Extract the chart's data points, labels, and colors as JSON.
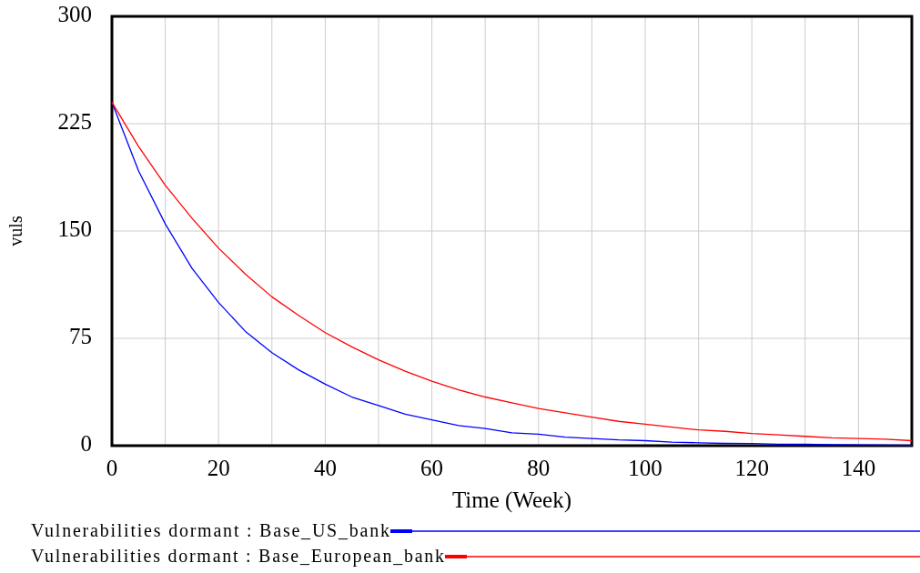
{
  "chart_data": {
    "type": "line",
    "xlabel": "Time (Week)",
    "ylabel": "vuls",
    "x": [
      0,
      5,
      10,
      15,
      20,
      25,
      30,
      35,
      40,
      45,
      50,
      55,
      60,
      65,
      70,
      75,
      80,
      85,
      90,
      95,
      100,
      105,
      110,
      115,
      120,
      125,
      130,
      135,
      140,
      145,
      150
    ],
    "series": [
      {
        "name": "Vulnerabilities dormant : Base_US_bank",
        "color": "#0000ff",
        "values": [
          240,
          192,
          155,
          124,
          100,
          80,
          65,
          53,
          43,
          34,
          28,
          22,
          18,
          14,
          12,
          9,
          8,
          6,
          5,
          4,
          3.5,
          2.5,
          2,
          1.6,
          1.5,
          1,
          1,
          0.7,
          0.5,
          0.4,
          0.3
        ]
      },
      {
        "name": "Vulnerabilities dormant : Base_European_bank",
        "color": "#ff0000",
        "values": [
          240,
          209,
          182,
          159,
          138,
          120,
          104,
          91,
          79,
          69,
          60,
          52,
          45,
          39,
          34,
          30,
          26,
          23,
          20,
          17,
          15,
          13,
          11,
          10,
          8.5,
          7.5,
          6.5,
          5.5,
          5,
          4.5,
          3.5
        ]
      }
    ],
    "xlim": [
      0,
      150
    ],
    "xticks": [
      0,
      20,
      40,
      60,
      80,
      100,
      120,
      140
    ],
    "ylim": [
      0,
      300
    ],
    "yticks": [
      0,
      75,
      150,
      225,
      300
    ],
    "grid": true,
    "legend": "bottom",
    "marker": "none",
    "line_style": "solid"
  }
}
